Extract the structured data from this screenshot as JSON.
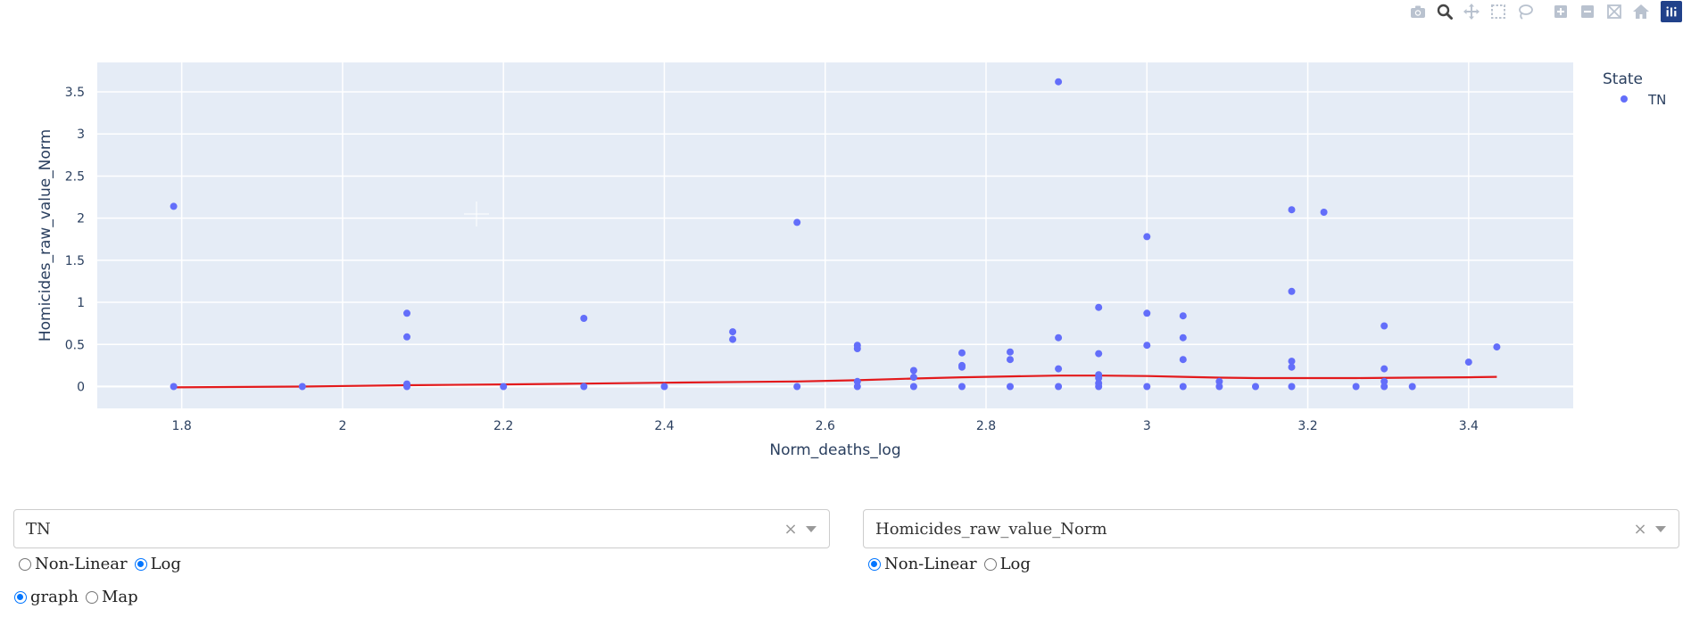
{
  "modebar": {
    "icons": [
      "camera-icon",
      "zoom-icon",
      "pan-icon",
      "box-select-icon",
      "lasso-icon",
      "zoom-in-icon",
      "zoom-out-icon",
      "autoscale-icon",
      "reset-axes-icon",
      "plotly-logo-icon"
    ],
    "active": "zoom-icon"
  },
  "chart_data": {
    "type": "scatter",
    "xlabel": "Norm_deaths_log",
    "ylabel": "Homicides_raw_value_Norm",
    "xlim": [
      1.695,
      3.53
    ],
    "ylim": [
      -0.26,
      3.85
    ],
    "xticks": [
      1.8,
      2,
      2.2,
      2.4,
      2.6,
      2.8,
      3,
      3.2,
      3.4
    ],
    "xtick_labels": [
      "1.8",
      "2",
      "2.2",
      "2.4",
      "2.6",
      "2.8",
      "3",
      "3.2",
      "3.4"
    ],
    "yticks": [
      0,
      0.5,
      1,
      1.5,
      2,
      2.5,
      3,
      3.5
    ],
    "ytick_labels": [
      "0",
      "0.5",
      "1",
      "1.5",
      "2",
      "2.5",
      "3",
      "3.5"
    ],
    "grid": true,
    "legend_title": "State",
    "legend_position": "top-right",
    "series": [
      {
        "name": "TN",
        "color": "#636efa",
        "points": [
          [
            1.79,
            2.14
          ],
          [
            1.79,
            0.0
          ],
          [
            1.95,
            0.0
          ],
          [
            2.08,
            0.87
          ],
          [
            2.08,
            0.59
          ],
          [
            2.08,
            0.03
          ],
          [
            2.08,
            0.0
          ],
          [
            2.2,
            0.0
          ],
          [
            2.3,
            0.81
          ],
          [
            2.3,
            0.0
          ],
          [
            2.4,
            0.0
          ],
          [
            2.485,
            0.65
          ],
          [
            2.485,
            0.56
          ],
          [
            2.565,
            1.95
          ],
          [
            2.565,
            0.0
          ],
          [
            2.64,
            0.49
          ],
          [
            2.64,
            0.45
          ],
          [
            2.64,
            0.06
          ],
          [
            2.64,
            0.0
          ],
          [
            2.71,
            0.19
          ],
          [
            2.71,
            0.11
          ],
          [
            2.71,
            0.0
          ],
          [
            2.77,
            0.4
          ],
          [
            2.77,
            0.25
          ],
          [
            2.77,
            0.23
          ],
          [
            2.77,
            0.0
          ],
          [
            2.83,
            0.41
          ],
          [
            2.83,
            0.32
          ],
          [
            2.83,
            0.0
          ],
          [
            2.89,
            3.62
          ],
          [
            2.89,
            0.58
          ],
          [
            2.89,
            0.21
          ],
          [
            2.89,
            0.0
          ],
          [
            2.94,
            0.94
          ],
          [
            2.94,
            0.39
          ],
          [
            2.94,
            0.14
          ],
          [
            2.94,
            0.1
          ],
          [
            2.94,
            0.04
          ],
          [
            2.94,
            0.0
          ],
          [
            3.0,
            1.78
          ],
          [
            3.0,
            0.87
          ],
          [
            3.0,
            0.49
          ],
          [
            3.0,
            0.0
          ],
          [
            3.045,
            0.84
          ],
          [
            3.045,
            0.58
          ],
          [
            3.045,
            0.32
          ],
          [
            3.045,
            0.0
          ],
          [
            3.09,
            0.06
          ],
          [
            3.09,
            0.0
          ],
          [
            3.135,
            0.0
          ],
          [
            3.18,
            2.1
          ],
          [
            3.18,
            1.13
          ],
          [
            3.18,
            0.3
          ],
          [
            3.18,
            0.23
          ],
          [
            3.18,
            0.0
          ],
          [
            3.22,
            2.07
          ],
          [
            3.26,
            0.0
          ],
          [
            3.295,
            0.72
          ],
          [
            3.295,
            0.21
          ],
          [
            3.295,
            0.06
          ],
          [
            3.295,
            0.0
          ],
          [
            3.33,
            0.0
          ],
          [
            3.4,
            0.29
          ],
          [
            3.435,
            0.47
          ]
        ]
      }
    ],
    "trendline": {
      "color": "#e31a1c",
      "points": [
        [
          1.79,
          -0.01
        ],
        [
          1.95,
          0.0
        ],
        [
          2.08,
          0.015
        ],
        [
          2.2,
          0.025
        ],
        [
          2.3,
          0.035
        ],
        [
          2.4,
          0.045
        ],
        [
          2.5,
          0.055
        ],
        [
          2.565,
          0.06
        ],
        [
          2.64,
          0.075
        ],
        [
          2.71,
          0.095
        ],
        [
          2.77,
          0.11
        ],
        [
          2.83,
          0.12
        ],
        [
          2.89,
          0.13
        ],
        [
          2.94,
          0.13
        ],
        [
          3.0,
          0.125
        ],
        [
          3.045,
          0.115
        ],
        [
          3.09,
          0.105
        ],
        [
          3.135,
          0.1
        ],
        [
          3.18,
          0.1
        ],
        [
          3.26,
          0.1
        ],
        [
          3.33,
          0.105
        ],
        [
          3.4,
          0.11
        ],
        [
          3.435,
          0.115
        ]
      ]
    }
  },
  "controls": {
    "state_dropdown": {
      "value": "TN",
      "clear": "×"
    },
    "variable_dropdown": {
      "value": "Homicides_raw_value_Norm",
      "clear": "×"
    },
    "x_scale": {
      "options": [
        "Non-Linear",
        "Log"
      ],
      "selected": "Log"
    },
    "y_scale": {
      "options": [
        "Non-Linear",
        "Log"
      ],
      "selected": "Non-Linear"
    },
    "view": {
      "options": [
        "graph",
        "Map"
      ],
      "selected": "graph"
    }
  }
}
